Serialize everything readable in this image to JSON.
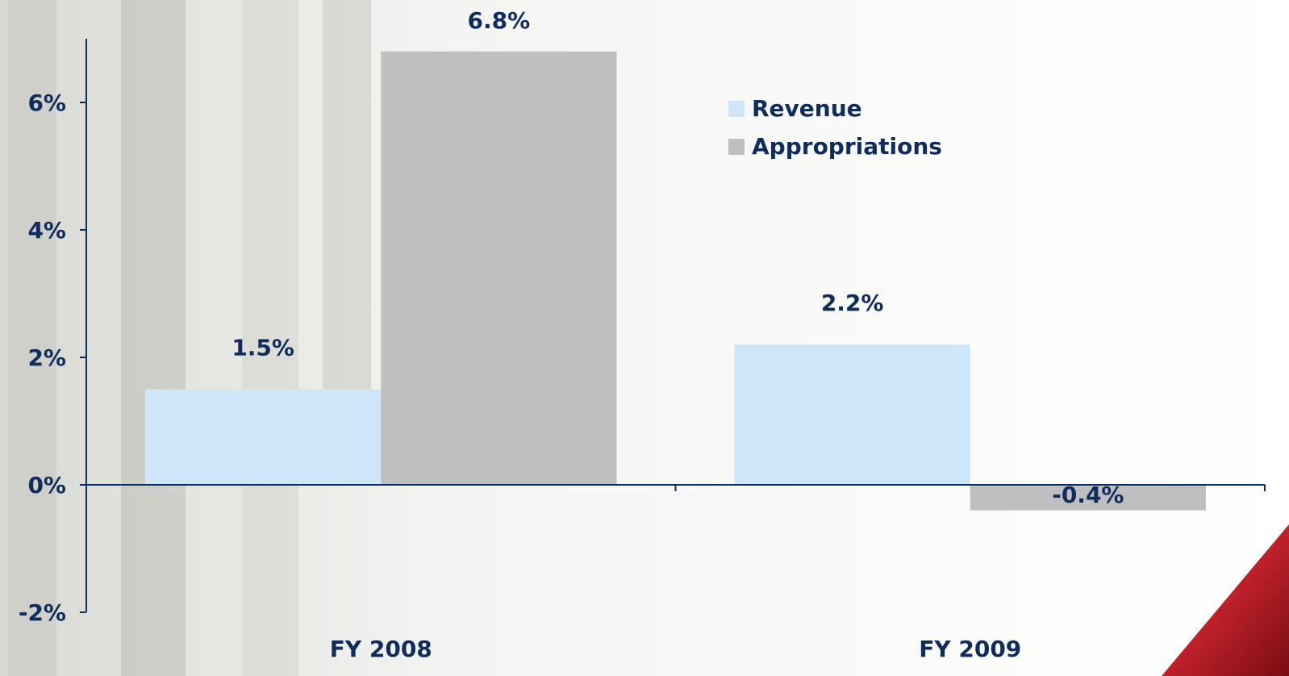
{
  "chart_data": {
    "type": "bar",
    "categories": [
      "FY 2008",
      "FY 2009"
    ],
    "series": [
      {
        "name": "Revenue",
        "color": "#cfe6f8",
        "values": [
          1.5,
          2.2
        ],
        "value_labels": [
          "1.5%",
          "2.2%"
        ]
      },
      {
        "name": "Appropriations",
        "color": "#bfbfbf",
        "values": [
          6.8,
          -0.4
        ],
        "value_labels": [
          "6.8%",
          "-0.4%"
        ]
      }
    ],
    "ylim": [
      -2,
      7
    ],
    "yticks": [
      {
        "value": -2,
        "label": "-2%"
      },
      {
        "value": 0,
        "label": "0%"
      },
      {
        "value": 2,
        "label": "2%"
      },
      {
        "value": 4,
        "label": "4%"
      },
      {
        "value": 6,
        "label": "6%"
      }
    ],
    "legend": "top-right"
  }
}
